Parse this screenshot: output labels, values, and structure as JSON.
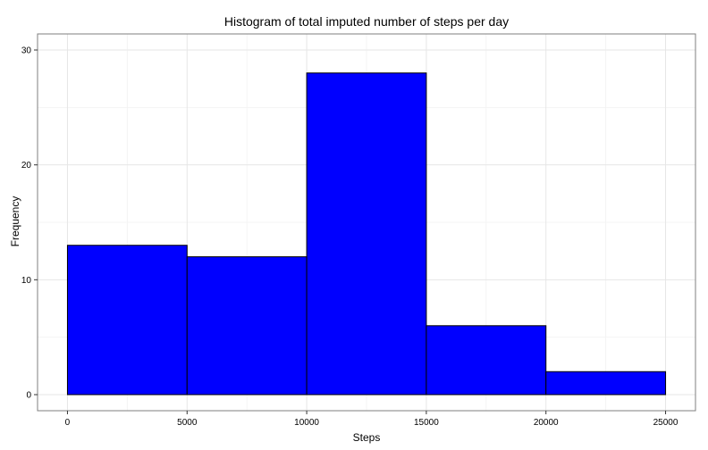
{
  "chart_data": {
    "type": "bar",
    "title": "Histogram of total imputed number of steps per day",
    "xlabel": "Steps",
    "ylabel": "Frequency",
    "bins": [
      {
        "start": 0,
        "end": 5000,
        "count": 13
      },
      {
        "start": 5000,
        "end": 10000,
        "count": 12
      },
      {
        "start": 10000,
        "end": 15000,
        "count": 28
      },
      {
        "start": 15000,
        "end": 20000,
        "count": 6
      },
      {
        "start": 20000,
        "end": 25000,
        "count": 2
      }
    ],
    "xlim": [
      -1250,
      26250
    ],
    "ylim": [
      -1.4,
      31.4
    ],
    "xticks": [
      0,
      5000,
      10000,
      15000,
      20000,
      25000
    ],
    "yticks": [
      0,
      10,
      20,
      30
    ],
    "bar_color": "#0000ff",
    "bar_border_color": "#000000",
    "grid": true,
    "legend": "none"
  }
}
